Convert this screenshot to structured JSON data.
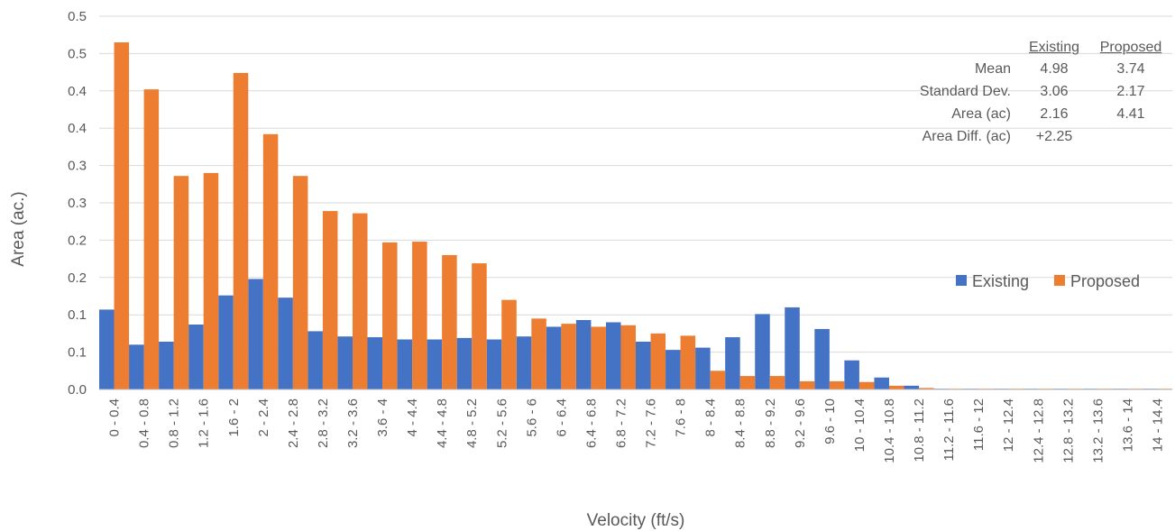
{
  "chart_data": {
    "type": "bar",
    "xlabel": "Velocity (ft/s)",
    "ylabel": "Area (ac.)",
    "ylim": [
      0,
      0.5
    ],
    "yticks": [
      0.0,
      0.05,
      0.1,
      0.15,
      0.2,
      0.25,
      0.3,
      0.35,
      0.4,
      0.45,
      0.5
    ],
    "ytick_labels": [
      "0.0",
      "0.1",
      "0.1",
      "0.2",
      "0.2",
      "0.3",
      "0.3",
      "0.4",
      "0.4",
      "0.5",
      "0.5"
    ],
    "grid": true,
    "legend_position": "right",
    "categories": [
      "0 - 0.4",
      "0.4 - 0.8",
      "0.8 - 1.2",
      "1.2 - 1.6",
      "1.6 - 2",
      "2 - 2.4",
      "2.4 - 2.8",
      "2.8 - 3.2",
      "3.2 - 3.6",
      "3.6 - 4",
      "4 - 4.4",
      "4.4 - 4.8",
      "4.8 - 5.2",
      "5.2 - 5.6",
      "5.6 - 6",
      "6 - 6.4",
      "6.4 - 6.8",
      "6.8 - 7.2",
      "7.2 - 7.6",
      "7.6 - 8",
      "8 - 8.4",
      "8.4 - 8.8",
      "8.8 - 9.2",
      "9.2 - 9.6",
      "9.6 - 10",
      "10 - 10.4",
      "10.4 - 10.8",
      "10.8 - 11.2",
      "11.2 - 11.6",
      "11.6 - 12",
      "12 - 12.4",
      "12.4 - 12.8",
      "12.8 - 13.2",
      "13.2 - 13.6",
      "13.6 - 14",
      "14 - 14.4"
    ],
    "series": [
      {
        "name": "Existing",
        "color": "#4472C4",
        "values": [
          0.107,
          0.06,
          0.064,
          0.087,
          0.126,
          0.148,
          0.123,
          0.078,
          0.071,
          0.07,
          0.067,
          0.067,
          0.069,
          0.067,
          0.071,
          0.084,
          0.093,
          0.09,
          0.064,
          0.053,
          0.056,
          0.07,
          0.101,
          0.11,
          0.081,
          0.039,
          0.016,
          0.005,
          0.001,
          0.001,
          0.001,
          0.001,
          0.001,
          0.001,
          0.001,
          0.001
        ]
      },
      {
        "name": "Proposed",
        "color": "#ED7D31",
        "values": [
          0.465,
          0.402,
          0.286,
          0.29,
          0.424,
          0.342,
          0.286,
          0.239,
          0.236,
          0.197,
          0.198,
          0.18,
          0.169,
          0.12,
          0.095,
          0.088,
          0.084,
          0.086,
          0.075,
          0.072,
          0.025,
          0.018,
          0.018,
          0.011,
          0.011,
          0.01,
          0.005,
          0.002,
          0.001,
          0.001,
          0.001,
          0.001,
          0.001,
          0.001,
          0.001,
          0.001
        ]
      }
    ],
    "stats_table": {
      "headers": [
        "Existing",
        "Proposed"
      ],
      "rows": [
        {
          "label": "Mean",
          "existing": "4.98",
          "proposed": "3.74"
        },
        {
          "label": "Standard Dev.",
          "existing": "3.06",
          "proposed": "2.17"
        },
        {
          "label": "Area (ac)",
          "existing": "2.16",
          "proposed": "4.41"
        },
        {
          "label": "Area Diff. (ac)",
          "existing": "+2.25",
          "proposed": ""
        }
      ]
    }
  }
}
